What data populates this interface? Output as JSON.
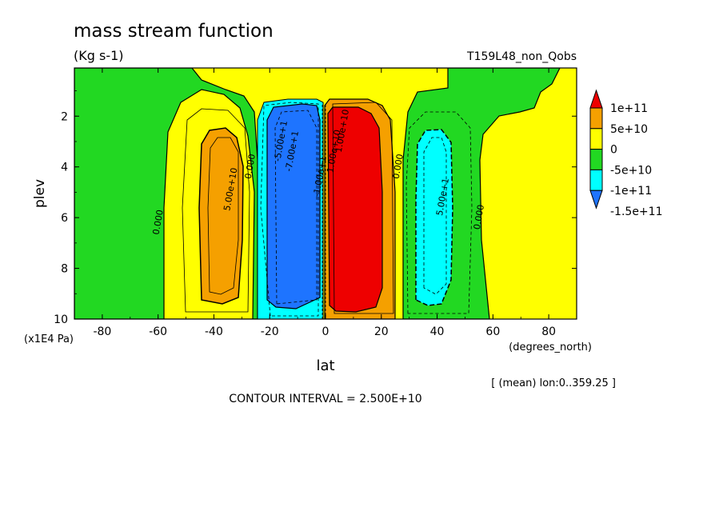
{
  "header": {
    "title": "mass stream function",
    "units": "(Kg s-1)",
    "run_name": "T159L48_non_Qobs"
  },
  "footer": {
    "mean_note": "[ (mean) lon:0..359.25 ]",
    "contour_interval": "CONTOUR INTERVAL = 2.500E+10"
  },
  "chart_data": {
    "type": "heatmap",
    "title": "mass stream function",
    "subtitle": "(Kg s-1)",
    "xlabel": "lat",
    "x_units": "(degrees_north)",
    "ylabel": "plev",
    "y_units": "(x1E4 Pa)",
    "xlim": [
      -90,
      90
    ],
    "ylim": [
      10,
      0.1
    ],
    "y_inverted": true,
    "x_ticks": [
      -80,
      -60,
      -40,
      -20,
      0,
      20,
      40,
      60,
      80
    ],
    "y_ticks": [
      2,
      4,
      6,
      8,
      10
    ],
    "colorbar": {
      "labels": [
        "1e+11",
        "5e+10",
        "0",
        "-5e+10",
        "-1e+11",
        "-1.5e+11"
      ],
      "bins": [
        {
          "range": "> 1e+11",
          "color": "#ee0000"
        },
        {
          "range": "5e+10 to 1e+11",
          "color": "#f5a000"
        },
        {
          "range": "0 to 5e+10",
          "color": "#ffff00"
        },
        {
          "range": "-5e+10 to 0",
          "color": "#22d822"
        },
        {
          "range": "-1e+11 to -5e+10",
          "color": "#00ffff"
        },
        {
          "range": "< -1e+11",
          "color": "#1e74ff"
        }
      ]
    },
    "contour_interval": 25000000000,
    "cells": [
      {
        "name": "southern polar cell",
        "sign": "negative",
        "lat_range": [
          -90,
          -58
        ],
        "category": "-5e+10 to 0"
      },
      {
        "name": "southern ferrel cell",
        "sign": "positive",
        "lat_range": [
          -52,
          -26
        ],
        "peak_lat": -38,
        "peak_plev": 6,
        "category": "5e+10 to 1e+11"
      },
      {
        "name": "southern hadley cell",
        "sign": "negative",
        "lat_range": [
          -22,
          0
        ],
        "peak_lat": -8,
        "peak_plev": 5,
        "category": "< -1e+11"
      },
      {
        "name": "northern hadley cell",
        "sign": "positive",
        "lat_range": [
          2,
          24
        ],
        "peak_lat": 10,
        "peak_plev": 5,
        "category": "> 1e+11"
      },
      {
        "name": "northern ferrel cell",
        "sign": "negative",
        "lat_range": [
          28,
          54
        ],
        "peak_lat": 40,
        "peak_plev": 6,
        "category": "-1e+11 to -5e+10"
      },
      {
        "name": "northern polar cell",
        "sign": "positive",
        "lat_range": [
          60,
          90
        ],
        "category": "0 to 5e+10"
      }
    ],
    "contour_labels": [
      {
        "text": "5.00e+10",
        "lat": -33,
        "plev": 4.9
      },
      {
        "text": "-5.00e+1",
        "lat": -15,
        "plev": 3.0
      },
      {
        "text": "-7.00e+1",
        "lat": -11,
        "plev": 3.4
      },
      {
        "text": "5.00e+1",
        "lat": 43,
        "plev": 5.2
      },
      {
        "text": "1.00e+10",
        "lat": 7,
        "plev": 2.6
      },
      {
        "text": "1.00e+10",
        "lat": 4,
        "plev": 3.4
      },
      {
        "text": "0.000",
        "lat": -59,
        "plev": 6.2
      },
      {
        "text": "0.000",
        "lat": -26,
        "plev": 4.0
      },
      {
        "text": "0.000",
        "lat": 27,
        "plev": 4.0
      },
      {
        "text": "0.000",
        "lat": 56,
        "plev": 6.0
      },
      {
        "text": "-1.00e+1",
        "lat": -1,
        "plev": 4.4
      }
    ]
  }
}
